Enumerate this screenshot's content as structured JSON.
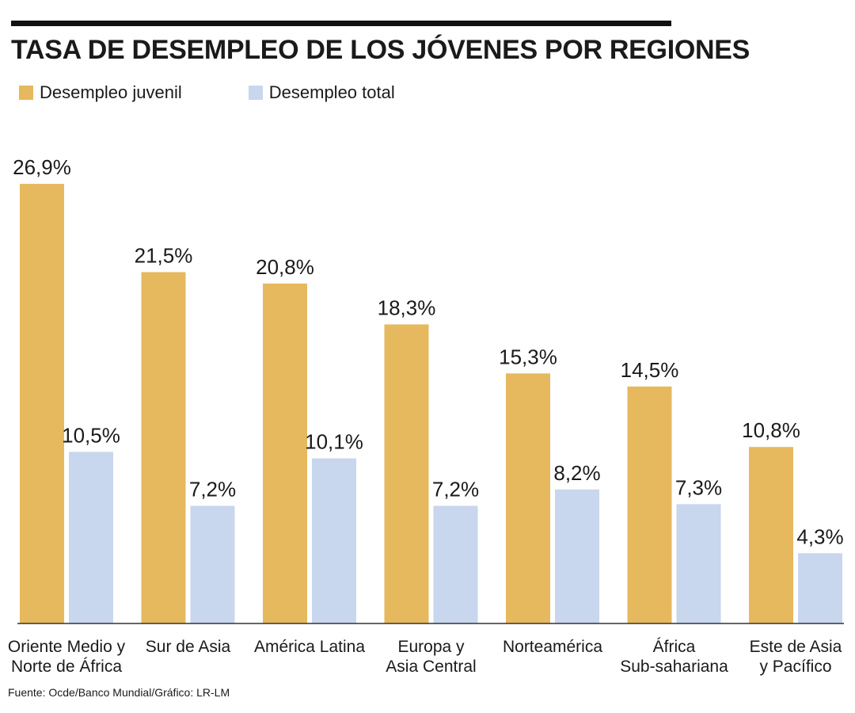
{
  "header": {
    "title": "TASA DE DESEMPLEO DE LOS JÓVENES POR REGIONES"
  },
  "legend": [
    {
      "label": "Desempleo juvenil",
      "color": "#e6b95e"
    },
    {
      "label": "Desempleo total",
      "color": "#c8d6ee"
    }
  ],
  "footer": {
    "source": "Fuente: Ocde/Banco Mundial/Gráfico: LR-LM"
  },
  "chart_data": {
    "type": "bar",
    "title": "TASA DE DESEMPLEO DE LOS JÓVENES POR REGIONES",
    "xlabel": "",
    "ylabel": "",
    "ylim": [
      0,
      27
    ],
    "grid": false,
    "legend_position": "top-left",
    "categories": [
      [
        "Oriente Medio y",
        "Norte de África"
      ],
      [
        "Sur de Asia"
      ],
      [
        "América Latina"
      ],
      [
        "Europa y",
        "Asia Central"
      ],
      [
        "Norteamérica"
      ],
      [
        "África",
        "Sub-sahariana"
      ],
      [
        "Este de Asia",
        "y Pacífico"
      ]
    ],
    "series": [
      {
        "name": "Desempleo juvenil",
        "color": "#e6b95e",
        "values": [
          26.9,
          21.5,
          20.8,
          18.3,
          15.3,
          14.5,
          10.8
        ],
        "labels": [
          "26,9%",
          "21,5%",
          "20,8%",
          "18,3%",
          "15,3%",
          "14,5%",
          "10,8%"
        ]
      },
      {
        "name": "Desempleo total",
        "color": "#c8d6ee",
        "values": [
          10.5,
          7.2,
          10.1,
          7.2,
          8.2,
          7.3,
          4.3
        ],
        "labels": [
          "10,5%",
          "7,2%",
          "10,1%",
          "7,2%",
          "8,2%",
          "7,3%",
          "4,3%"
        ]
      }
    ]
  }
}
